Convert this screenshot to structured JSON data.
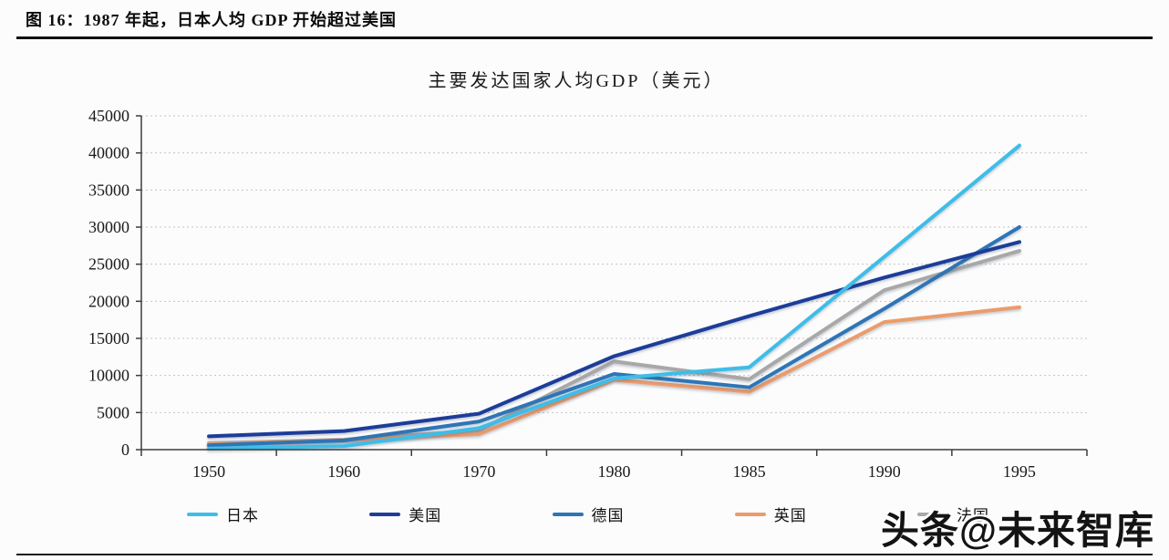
{
  "header": {
    "title": "图 16：1987 年起，日本人均 GDP 开始超过美国"
  },
  "chart_data": {
    "type": "line",
    "title": "主要发达国家人均GDP（美元）",
    "categories": [
      "1950",
      "1960",
      "1970",
      "1980",
      "1985",
      "1990",
      "1995"
    ],
    "series": [
      {
        "name": "日本",
        "color": "#3ebde8",
        "values": [
          150,
          480,
          2900,
          9600,
          11100,
          26000,
          41000
        ]
      },
      {
        "name": "美国",
        "color": "#1f3d99",
        "values": [
          1800,
          2500,
          4850,
          12600,
          18000,
          23200,
          28000
        ]
      },
      {
        "name": "德国",
        "color": "#2e75b6",
        "values": [
          600,
          1250,
          3800,
          10200,
          8400,
          19000,
          30000
        ]
      },
      {
        "name": "英国",
        "color": "#eb9c6c",
        "values": [
          750,
          1300,
          2100,
          9400,
          7800,
          17200,
          19200
        ]
      },
      {
        "name": "法国",
        "color": "#a8a8a8",
        "values": [
          880,
          1350,
          2600,
          11900,
          9500,
          21500,
          26800
        ]
      }
    ],
    "ylim": [
      0,
      45000
    ],
    "y_ticks": [
      0,
      5000,
      10000,
      15000,
      20000,
      25000,
      30000,
      35000,
      40000,
      45000
    ],
    "grid": "horizontal dashed",
    "legend_position": "bottom"
  },
  "watermark": {
    "text": "头条@未来智库"
  }
}
